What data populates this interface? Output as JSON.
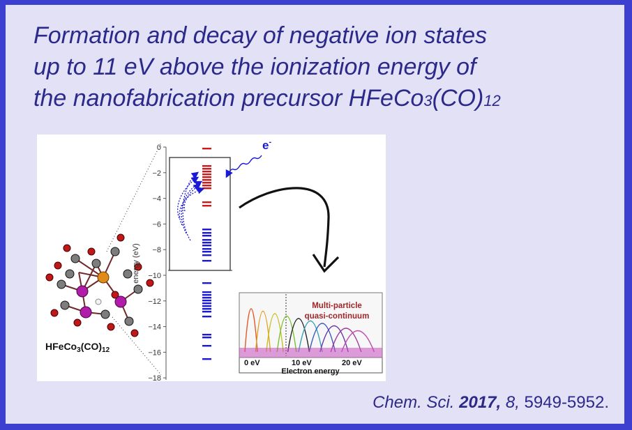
{
  "title": {
    "line1": "Formation and decay of negative ion states",
    "line2": "up to 11 eV above the ionization energy of",
    "line3_prefix": "the nanofabrication precursor HFeCo",
    "line3_sub1": "3",
    "line3_mid": "(CO)",
    "line3_sub2": "12"
  },
  "figure": {
    "molecule_label": {
      "prefix": "HFeCo",
      "sub1": "3",
      "mid": "(CO)",
      "sub2": "12"
    },
    "electron_label": "e",
    "electron_sup": "-",
    "energy_axis": {
      "label": "energy (eV)",
      "ticks": [
        "0",
        "−2",
        "−4",
        "−6",
        "−8",
        "−10",
        "−12",
        "−14",
        "−16",
        "−18"
      ]
    },
    "inset": {
      "annotation_line1": "Multi-particle",
      "annotation_line2": "quasi-continuum",
      "xlabel": "Electron energy",
      "ticks": [
        "0 eV",
        "10 eV",
        "20 eV"
      ]
    },
    "colors": {
      "occupied_levels": "#1a1ad6",
      "unoccupied_levels": "#cc1a1a",
      "inset_annotation": "#a0262a"
    }
  },
  "citation": {
    "journal": "Chem. Sci.",
    "year": "2017,",
    "volume": "8,",
    "pages": "5949-5952."
  }
}
